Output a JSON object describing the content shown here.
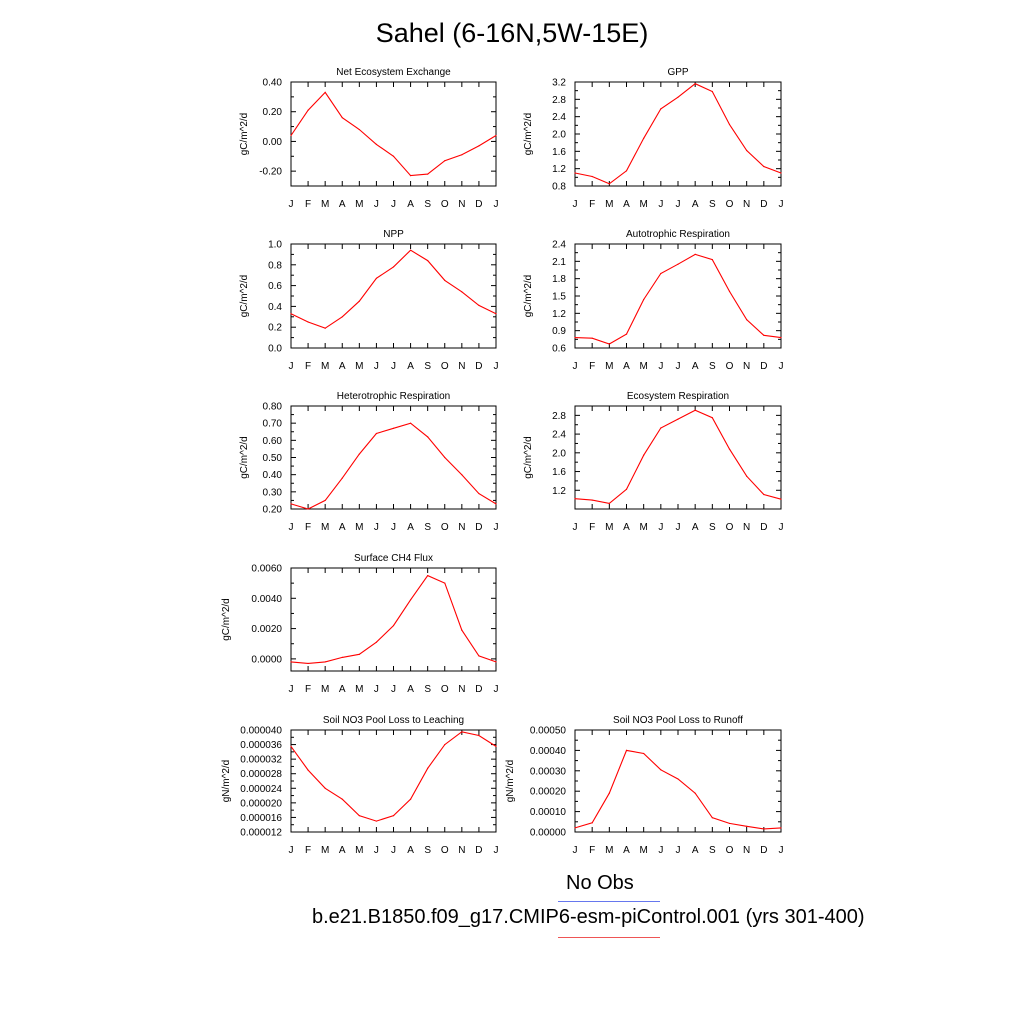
{
  "main_title": "Sahel (6-16N,5W-15E)",
  "legend": [
    {
      "label": "No Obs",
      "color": "#6677ee"
    },
    {
      "label": "b.e21.B1850.f09_g17.CMIP6-esm-piControl.001 (yrs 301-400)",
      "color": "#ee5555"
    }
  ],
  "colors": {
    "series": "#ff0000",
    "axis": "#000000"
  },
  "months": [
    "J",
    "F",
    "M",
    "A",
    "M",
    "J",
    "J",
    "A",
    "S",
    "O",
    "N",
    "D",
    "J"
  ],
  "chart_data": [
    {
      "type": "line",
      "title": "Net Ecosystem Exchange",
      "ylabel": "gC/m^2/d",
      "ylim": [
        -0.3,
        0.4
      ],
      "yticks": [
        -0.2,
        0.0,
        0.2,
        0.4
      ],
      "ytick_labels": [
        "-0.20",
        "0.00",
        "0.20",
        "0.40"
      ],
      "values": [
        0.04,
        0.21,
        0.33,
        0.16,
        0.08,
        -0.02,
        -0.1,
        -0.23,
        -0.22,
        -0.13,
        -0.09,
        -0.03,
        0.04
      ]
    },
    {
      "type": "line",
      "title": "GPP",
      "ylabel": "gC/m^2/d",
      "ylim": [
        0.8,
        3.2
      ],
      "yticks": [
        0.8,
        1.2,
        1.6,
        2.0,
        2.4,
        2.8,
        3.2
      ],
      "ytick_labels": [
        "0.8",
        "1.2",
        "1.6",
        "2.0",
        "2.4",
        "2.8",
        "3.2"
      ],
      "values": [
        1.1,
        1.02,
        0.85,
        1.15,
        1.9,
        2.58,
        2.85,
        3.16,
        2.98,
        2.22,
        1.62,
        1.25,
        1.1
      ]
    },
    {
      "type": "line",
      "title": "NPP",
      "ylabel": "gC/m^2/d",
      "ylim": [
        0.0,
        1.0
      ],
      "yticks": [
        0.0,
        0.2,
        0.4,
        0.6,
        0.8,
        1.0
      ],
      "ytick_labels": [
        "0.0",
        "0.2",
        "0.4",
        "0.6",
        "0.8",
        "1.0"
      ],
      "values": [
        0.33,
        0.25,
        0.19,
        0.3,
        0.45,
        0.67,
        0.78,
        0.94,
        0.84,
        0.65,
        0.54,
        0.41,
        0.33
      ]
    },
    {
      "type": "line",
      "title": "Autotrophic Respiration",
      "ylabel": "gC/m^2/d",
      "ylim": [
        0.6,
        2.4
      ],
      "yticks": [
        0.6,
        0.9,
        1.2,
        1.5,
        1.8,
        2.1,
        2.4
      ],
      "ytick_labels": [
        "0.6",
        "0.9",
        "1.2",
        "1.5",
        "1.8",
        "2.1",
        "2.4"
      ],
      "values": [
        0.78,
        0.77,
        0.67,
        0.84,
        1.44,
        1.89,
        2.05,
        2.22,
        2.13,
        1.58,
        1.09,
        0.82,
        0.78
      ]
    },
    {
      "type": "line",
      "title": "Heterotrophic Respiration",
      "ylabel": "gC/m^2/d",
      "ylim": [
        0.2,
        0.8
      ],
      "yticks": [
        0.2,
        0.3,
        0.4,
        0.5,
        0.6,
        0.7,
        0.8
      ],
      "ytick_labels": [
        "0.20",
        "0.30",
        "0.40",
        "0.50",
        "0.60",
        "0.70",
        "0.80"
      ],
      "values": [
        0.23,
        0.2,
        0.25,
        0.38,
        0.52,
        0.64,
        0.67,
        0.7,
        0.62,
        0.5,
        0.4,
        0.29,
        0.23
      ]
    },
    {
      "type": "line",
      "title": "Ecosystem Respiration",
      "ylabel": "gC/m^2/d",
      "ylim": [
        0.8,
        3.0
      ],
      "yticks": [
        1.2,
        1.6,
        2.0,
        2.4,
        2.8
      ],
      "ytick_labels": [
        "1.2",
        "1.6",
        "2.0",
        "2.4",
        "2.8"
      ],
      "values": [
        1.02,
        0.99,
        0.92,
        1.22,
        1.95,
        2.53,
        2.72,
        2.91,
        2.75,
        2.08,
        1.5,
        1.11,
        1.01
      ]
    },
    {
      "type": "line",
      "title": "Surface CH4 Flux",
      "ylabel": "gC/m^2/d",
      "ylim": [
        -0.0008,
        0.006
      ],
      "yticks": [
        0.0,
        0.002,
        0.004,
        0.006
      ],
      "ytick_labels": [
        "0.0000",
        "0.0020",
        "0.0040",
        "0.0060"
      ],
      "values": [
        -0.0002,
        -0.0003,
        -0.0002,
        0.0001,
        0.0003,
        0.0011,
        0.0022,
        0.0039,
        0.0055,
        0.005,
        0.0019,
        0.0002,
        -0.0002
      ]
    },
    {
      "type": "line",
      "title": "Soil NO3 Pool Loss to Leaching",
      "ylabel": "gN/m^2/d",
      "ylim": [
        1.2e-05,
        4e-05
      ],
      "yticks": [
        1.2e-05,
        1.6e-05,
        2e-05,
        2.4e-05,
        2.8e-05,
        3.2e-05,
        3.6e-05,
        4e-05
      ],
      "ytick_labels": [
        "0.000012",
        "0.000016",
        "0.000020",
        "0.000024",
        "0.000028",
        "0.000032",
        "0.000036",
        "0.000040"
      ],
      "values": [
        3.55e-05,
        2.9e-05,
        2.4e-05,
        2.1e-05,
        1.65e-05,
        1.5e-05,
        1.65e-05,
        2.1e-05,
        2.95e-05,
        3.6e-05,
        3.95e-05,
        3.85e-05,
        3.55e-05
      ]
    },
    {
      "type": "line",
      "title": "Soil NO3 Pool Loss to Runoff",
      "ylabel": "gN/m^2/d",
      "ylim": [
        0.0,
        0.0005
      ],
      "yticks": [
        0.0,
        0.0001,
        0.0002,
        0.0003,
        0.0004,
        0.0005
      ],
      "ytick_labels": [
        "0.00000",
        "0.00010",
        "0.00020",
        "0.00030",
        "0.00040",
        "0.00050"
      ],
      "values": [
        2e-05,
        4.5e-05,
        0.00019,
        0.0004,
        0.000385,
        0.000305,
        0.00026,
        0.00019,
        7e-05,
        4.2e-05,
        2.8e-05,
        1.5e-05,
        2e-05
      ]
    }
  ]
}
